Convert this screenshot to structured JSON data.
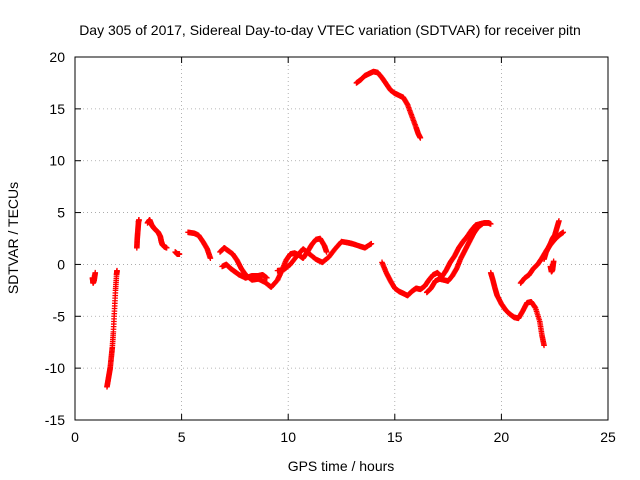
{
  "chart_data": {
    "type": "scatter",
    "title": "Day 305 of 2017, Sidereal Day-to-day VTEC variation (SDTVAR) for receiver pitn",
    "xlabel": "GPS time / hours",
    "ylabel": "SDTVAR / TECUs",
    "xlim": [
      0,
      25
    ],
    "ylim": [
      -15,
      20
    ],
    "grid": true,
    "marker": "+",
    "x_ticks": [
      0,
      5,
      10,
      15,
      20,
      25
    ],
    "y_ticks": [
      -15,
      -10,
      -5,
      0,
      5,
      10,
      15,
      20
    ],
    "x_tick_labels": [
      "0",
      "5",
      "10",
      "15",
      "20",
      "25"
    ],
    "y_tick_labels": [
      "-15",
      "-10",
      "-5",
      "0",
      "5",
      "10",
      "15",
      "20"
    ],
    "series": [
      {
        "name": "SDTVAR",
        "color": "#ff0000",
        "segments": [
          [
            [
              0.82,
              -1.3
            ],
            [
              0.85,
              -1.8
            ],
            [
              0.9,
              -1.5
            ],
            [
              0.95,
              -0.8
            ]
          ],
          [
            [
              1.5,
              -11.8
            ],
            [
              1.55,
              -11.2
            ],
            [
              1.6,
              -10.6
            ],
            [
              1.65,
              -10.0
            ],
            [
              1.7,
              -9.0
            ],
            [
              1.75,
              -8.0
            ],
            [
              1.8,
              -6.5
            ],
            [
              1.85,
              -4.5
            ],
            [
              1.9,
              -2.5
            ],
            [
              1.95,
              -1.0
            ],
            [
              1.97,
              -0.6
            ]
          ],
          [
            [
              2.9,
              1.6
            ],
            [
              2.92,
              2.5
            ],
            [
              2.95,
              3.3
            ],
            [
              2.98,
              4.1
            ],
            [
              3.0,
              4.3
            ]
          ],
          [
            [
              3.4,
              4.0
            ],
            [
              3.5,
              4.3
            ],
            [
              3.6,
              3.8
            ],
            [
              3.7,
              3.5
            ],
            [
              3.8,
              3.3
            ],
            [
              3.9,
              3.1
            ],
            [
              4.0,
              2.7
            ],
            [
              4.05,
              2.2
            ],
            [
              4.1,
              1.9
            ],
            [
              4.2,
              1.7
            ],
            [
              4.3,
              1.6
            ]
          ],
          [
            [
              4.7,
              1.2
            ],
            [
              4.8,
              1.0
            ],
            [
              4.9,
              1.0
            ]
          ],
          [
            [
              5.3,
              3.1
            ],
            [
              5.6,
              3.0
            ],
            [
              5.8,
              2.8
            ],
            [
              6.0,
              2.2
            ],
            [
              6.2,
              1.5
            ],
            [
              6.35,
              0.6
            ]
          ],
          [
            [
              6.8,
              1.2
            ],
            [
              7.0,
              1.6
            ],
            [
              7.2,
              1.3
            ],
            [
              7.4,
              1.0
            ],
            [
              7.6,
              0.4
            ],
            [
              7.8,
              -0.4
            ],
            [
              8.0,
              -1.0
            ],
            [
              8.3,
              -1.5
            ],
            [
              8.6,
              -1.4
            ],
            [
              8.9,
              -1.7
            ],
            [
              9.2,
              -2.2
            ],
            [
              9.5,
              -1.5
            ],
            [
              9.7,
              -0.6
            ],
            [
              9.9,
              0.4
            ],
            [
              10.1,
              1.0
            ],
            [
              10.3,
              1.1
            ],
            [
              10.5,
              0.9
            ],
            [
              10.7,
              0.6
            ],
            [
              10.9,
              1.2
            ],
            [
              11.1,
              1.9
            ],
            [
              11.3,
              2.4
            ],
            [
              11.5,
              2.5
            ],
            [
              11.7,
              1.8
            ],
            [
              11.8,
              1.2
            ]
          ],
          [
            [
              6.9,
              -0.2
            ],
            [
              7.1,
              0.0
            ],
            [
              7.3,
              -0.4
            ],
            [
              7.5,
              -0.7
            ],
            [
              7.7,
              -1.0
            ],
            [
              8.0,
              -1.3
            ],
            [
              8.3,
              -1.1
            ],
            [
              8.6,
              -1.1
            ],
            [
              8.8,
              -1.0
            ],
            [
              9.0,
              -1.3
            ]
          ],
          [
            [
              9.5,
              -0.6
            ],
            [
              9.8,
              -0.5
            ],
            [
              10.1,
              0.0
            ],
            [
              10.4,
              0.8
            ],
            [
              10.7,
              1.5
            ],
            [
              11.0,
              1.0
            ],
            [
              11.3,
              0.5
            ],
            [
              11.6,
              0.2
            ],
            [
              11.9,
              0.7
            ],
            [
              12.2,
              1.5
            ],
            [
              12.5,
              2.2
            ],
            [
              12.8,
              2.1
            ],
            [
              13.0,
              2.0
            ],
            [
              13.3,
              1.8
            ],
            [
              13.6,
              1.6
            ],
            [
              13.9,
              2.0
            ]
          ],
          [
            [
              13.2,
              17.5
            ],
            [
              13.4,
              17.8
            ],
            [
              13.6,
              18.2
            ],
            [
              13.8,
              18.4
            ],
            [
              14.0,
              18.6
            ],
            [
              14.2,
              18.5
            ],
            [
              14.4,
              18.0
            ],
            [
              14.6,
              17.4
            ],
            [
              14.8,
              16.8
            ],
            [
              15.0,
              16.5
            ],
            [
              15.2,
              16.3
            ],
            [
              15.4,
              16.1
            ],
            [
              15.6,
              15.4
            ],
            [
              15.8,
              14.3
            ],
            [
              16.0,
              13.2
            ],
            [
              16.1,
              12.6
            ],
            [
              16.2,
              12.2
            ]
          ],
          [
            [
              14.4,
              0.2
            ],
            [
              14.6,
              -0.8
            ],
            [
              14.8,
              -1.6
            ],
            [
              15.0,
              -2.3
            ],
            [
              15.2,
              -2.6
            ],
            [
              15.4,
              -2.8
            ],
            [
              15.6,
              -3.0
            ],
            [
              15.8,
              -2.6
            ],
            [
              16.0,
              -2.3
            ],
            [
              16.2,
              -2.4
            ],
            [
              16.4,
              -2.1
            ],
            [
              16.6,
              -1.5
            ],
            [
              16.8,
              -1.0
            ],
            [
              17.0,
              -0.8
            ],
            [
              17.2,
              -1.2
            ],
            [
              17.4,
              -0.6
            ],
            [
              17.6,
              0.2
            ],
            [
              17.8,
              0.8
            ],
            [
              18.0,
              1.6
            ],
            [
              18.2,
              2.2
            ],
            [
              18.4,
              2.7
            ],
            [
              18.6,
              3.3
            ],
            [
              18.8,
              3.8
            ],
            [
              19.0,
              3.9
            ],
            [
              19.2,
              4.0
            ],
            [
              19.4,
              4.0
            ],
            [
              19.5,
              3.9
            ]
          ],
          [
            [
              16.5,
              -2.7
            ],
            [
              16.7,
              -2.3
            ],
            [
              16.9,
              -1.6
            ],
            [
              17.1,
              -1.4
            ],
            [
              17.3,
              -1.5
            ],
            [
              17.5,
              -1.6
            ],
            [
              17.7,
              -1.1
            ],
            [
              17.9,
              -0.4
            ],
            [
              18.1,
              0.6
            ],
            [
              18.3,
              1.4
            ],
            [
              18.5,
              2.2
            ],
            [
              18.7,
              3.0
            ],
            [
              18.9,
              3.6
            ],
            [
              19.1,
              3.9
            ]
          ],
          [
            [
              19.5,
              -0.8
            ],
            [
              19.6,
              -1.5
            ],
            [
              19.7,
              -2.3
            ],
            [
              19.8,
              -3.0
            ],
            [
              20.0,
              -3.8
            ],
            [
              20.2,
              -4.4
            ],
            [
              20.4,
              -4.8
            ],
            [
              20.6,
              -5.1
            ],
            [
              20.8,
              -5.2
            ],
            [
              21.0,
              -4.5
            ],
            [
              21.2,
              -3.7
            ],
            [
              21.4,
              -3.6
            ],
            [
              21.6,
              -4.2
            ],
            [
              21.8,
              -5.5
            ],
            [
              21.9,
              -6.8
            ],
            [
              22.0,
              -7.8
            ]
          ],
          [
            [
              20.9,
              -1.8
            ],
            [
              21.1,
              -1.3
            ],
            [
              21.3,
              -1.0
            ],
            [
              21.5,
              -0.4
            ],
            [
              21.7,
              0.0
            ],
            [
              21.9,
              0.6
            ],
            [
              22.1,
              1.3
            ],
            [
              22.3,
              1.9
            ],
            [
              22.5,
              2.4
            ],
            [
              22.7,
              2.8
            ],
            [
              22.9,
              3.1
            ]
          ],
          [
            [
              22.0,
              0.5
            ],
            [
              22.1,
              1.2
            ],
            [
              22.2,
              1.6
            ],
            [
              22.3,
              2.0
            ],
            [
              22.4,
              2.5
            ],
            [
              22.5,
              2.8
            ],
            [
              22.6,
              3.5
            ],
            [
              22.7,
              4.2
            ]
          ],
          [
            [
              22.3,
              -0.2
            ],
            [
              22.35,
              -0.7
            ],
            [
              22.4,
              -0.5
            ],
            [
              22.45,
              0.3
            ]
          ]
        ]
      }
    ]
  }
}
